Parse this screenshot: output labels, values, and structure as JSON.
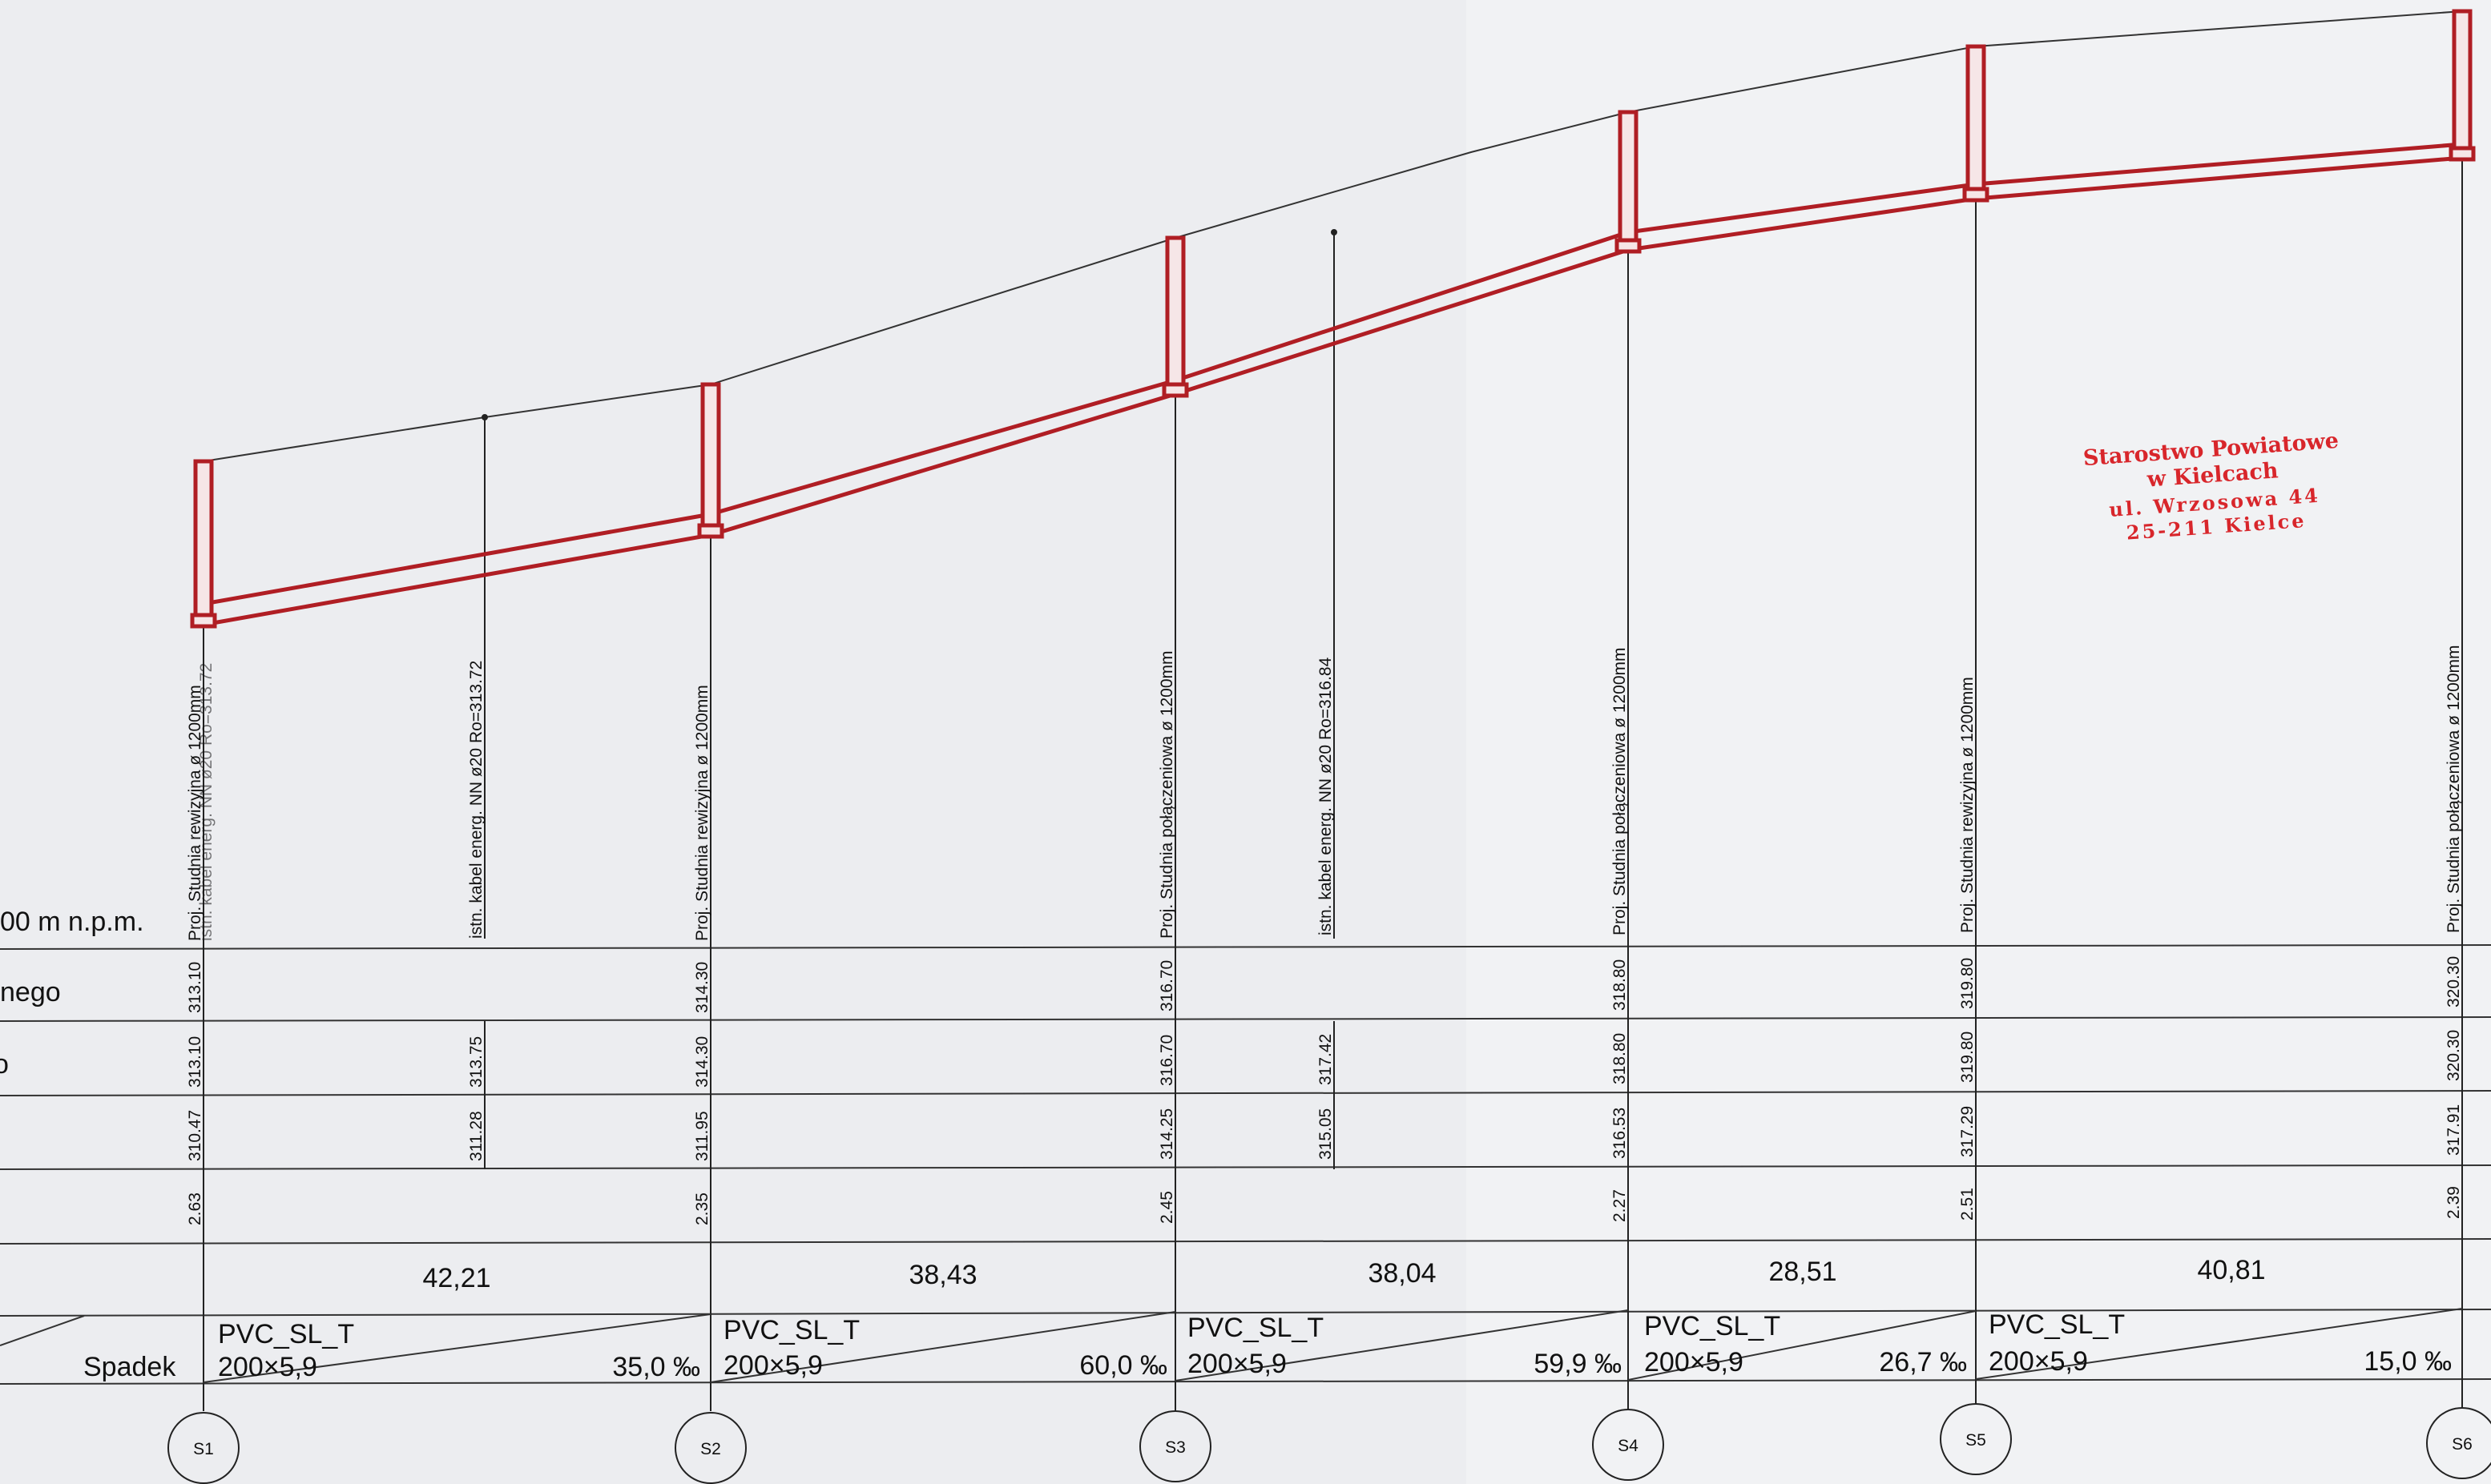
{
  "row_labels": {
    "datum": "00 m n.p.m.",
    "terrain": "nego",
    "partial": "o",
    "slope": "Spadek"
  },
  "wells": [
    {
      "id": "S1",
      "desc": "Proj. Studnia rewizyjna ø 1200mm",
      "terrain": "313.10",
      "design": "313.10",
      "bottom": "310.47",
      "depth": "2.63"
    },
    {
      "id": "S2",
      "desc": "Proj. Studnia rewizyjna ø 1200mm",
      "terrain": "314.30",
      "design": "314.30",
      "bottom": "311.95",
      "depth": "2.35"
    },
    {
      "id": "S3",
      "desc": "Proj. Studnia połączeniowa ø 1200mm",
      "terrain": "316.70",
      "design": "316.70",
      "bottom": "314.25",
      "depth": "2.45"
    },
    {
      "id": "S4",
      "desc": "Proj. Studnia połączeniowa ø 1200mm",
      "terrain": "318.80",
      "design": "318.80",
      "bottom": "316.53",
      "depth": "2.27"
    },
    {
      "id": "S5",
      "desc": "Proj. Studnia rewizyjna ø 1200mm",
      "terrain": "319.80",
      "design": "319.80",
      "bottom": "317.29",
      "depth": "2.51"
    },
    {
      "id": "S6",
      "desc": "Proj. Studnia połączeniowa ø 1200mm",
      "terrain": "320.30",
      "design": "320.30",
      "bottom": "317.91",
      "depth": "2.39"
    }
  ],
  "crossings": [
    {
      "desc": "istn. kabel energ. NN  ø20  Ro=313.72",
      "design": "313.75",
      "bottom": "311.28"
    },
    {
      "desc": "istn. kabel energ. NN  ø20  Ro=316.84",
      "design": "317.42",
      "bottom": "315.05"
    }
  ],
  "distances": [
    "42,21",
    "38,43",
    "38,04",
    "28,51",
    "40,81"
  ],
  "sections": [
    {
      "material": "PVC_SL_T",
      "size": "200×5,9",
      "slope": "35,0 ‰"
    },
    {
      "material": "PVC_SL_T",
      "size": "200×5,9",
      "slope": "60,0 ‰"
    },
    {
      "material": "PVC_SL_T",
      "size": "200×5,9",
      "slope": "59,9 ‰"
    },
    {
      "material": "PVC_SL_T",
      "size": "200×5,9",
      "slope": "26,7 ‰"
    },
    {
      "material": "PVC_SL_T",
      "size": "200×5,9",
      "slope": "15,0 ‰"
    }
  ],
  "stamp": {
    "line1": "Starostwo Powiatowe",
    "line2": "w Kielcach",
    "line3": "ul. Wrzosowa 44",
    "line4": "25-211 Kielce"
  },
  "colors": {
    "pipe": "#b01e24",
    "stamp": "#d8262b",
    "line": "#222222"
  }
}
